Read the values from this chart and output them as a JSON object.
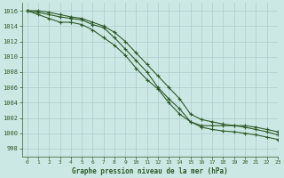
{
  "title": "Graphe pression niveau de la mer (hPa)",
  "bg_color": "#cce8e4",
  "grid_color": "#aacccc",
  "line_color": "#2d5a27",
  "xlim": [
    -0.5,
    23
  ],
  "ylim": [
    997,
    1017
  ],
  "xticks": [
    0,
    1,
    2,
    3,
    4,
    5,
    6,
    7,
    8,
    9,
    10,
    11,
    12,
    13,
    14,
    15,
    16,
    17,
    18,
    19,
    20,
    21,
    22,
    23
  ],
  "yticks": [
    998,
    1000,
    1002,
    1004,
    1006,
    1008,
    1010,
    1012,
    1014,
    1016
  ],
  "series1": [
    1016,
    1015.8,
    1015.5,
    1015.2,
    1015.0,
    1014.8,
    1014.2,
    1013.8,
    1012.5,
    1011.0,
    1009.5,
    1008.0,
    1006.0,
    1004.5,
    1003.2,
    1001.5,
    1000.8,
    1000.5,
    1000.3,
    1000.2,
    1000.0,
    999.8,
    999.5,
    999.2
  ],
  "series2": [
    1016,
    1015.5,
    1015.0,
    1014.5,
    1014.5,
    1014.2,
    1013.5,
    1012.5,
    1011.5,
    1010.2,
    1008.5,
    1007.0,
    1005.8,
    1004.0,
    1002.5,
    1001.5,
    1001.0,
    1001.0,
    1001.0,
    1001.0,
    1001.0,
    1000.8,
    1000.5,
    1000.2
  ],
  "series3": [
    1016,
    1016,
    1015.8,
    1015.5,
    1015.2,
    1015.0,
    1014.5,
    1014.0,
    1013.2,
    1012.0,
    1010.5,
    1009.0,
    1007.5,
    1006.0,
    1004.5,
    1002.5,
    1001.8,
    1001.5,
    1001.2,
    1001.0,
    1000.8,
    1000.5,
    1000.2,
    999.8
  ]
}
